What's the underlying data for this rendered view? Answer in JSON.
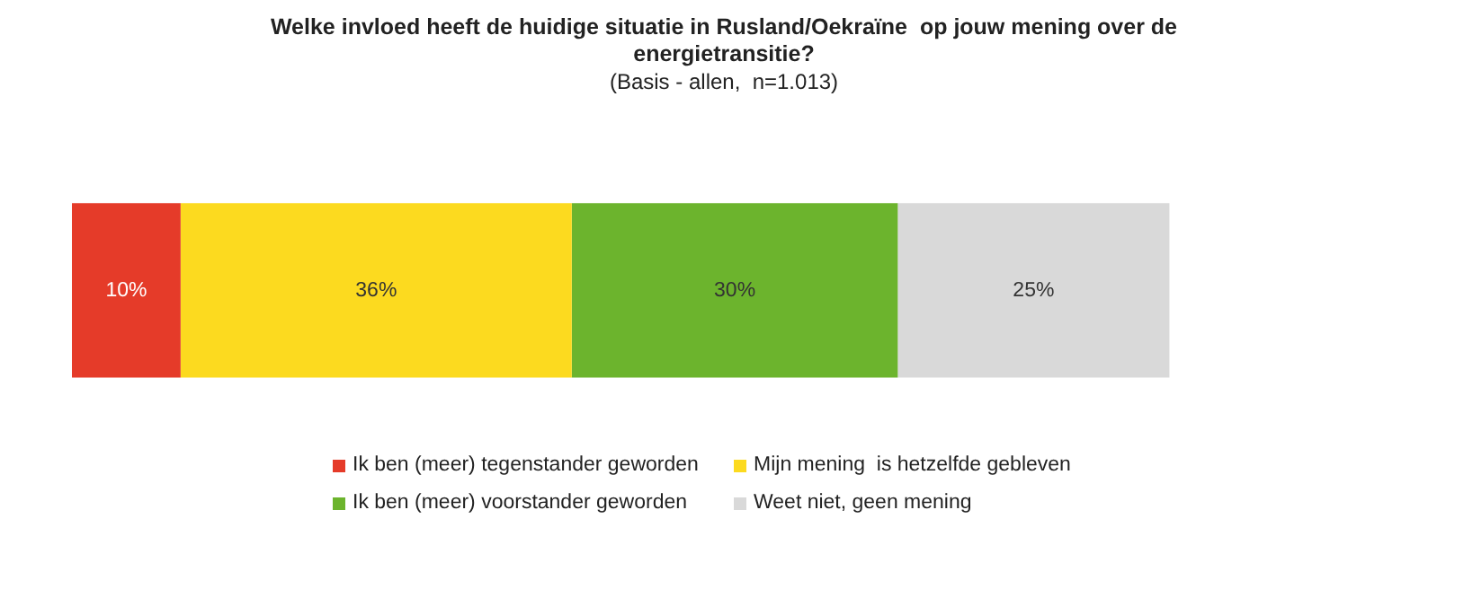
{
  "chart_data": {
    "type": "bar",
    "orientation": "horizontal",
    "stacked": true,
    "title": "Welke invloed heeft de huidige situatie in Rusland/Oekraïne  op jouw mening over de energietransitie?",
    "subtitle": "(Basis - allen,  n=1.013)",
    "categories": [
      null
    ],
    "legend": "bottom",
    "series": [
      {
        "name": "Ik ben (meer) tegenstander geworden",
        "color": "#e53b29",
        "values": [
          10
        ],
        "value_labels": [
          "10%"
        ]
      },
      {
        "name": "Mijn mening  is hetzelfde gebleven",
        "color": "#fcda1f",
        "values": [
          36
        ],
        "value_labels": [
          "36%"
        ]
      },
      {
        "name": "Ik ben (meer) voorstander geworden",
        "color": "#6cb42d",
        "values": [
          30
        ],
        "value_labels": [
          "30%"
        ]
      },
      {
        "name": "Weet niet, geen mening",
        "color": "#d9d9d9",
        "values": [
          25
        ],
        "value_labels": [
          "25%"
        ]
      }
    ]
  }
}
